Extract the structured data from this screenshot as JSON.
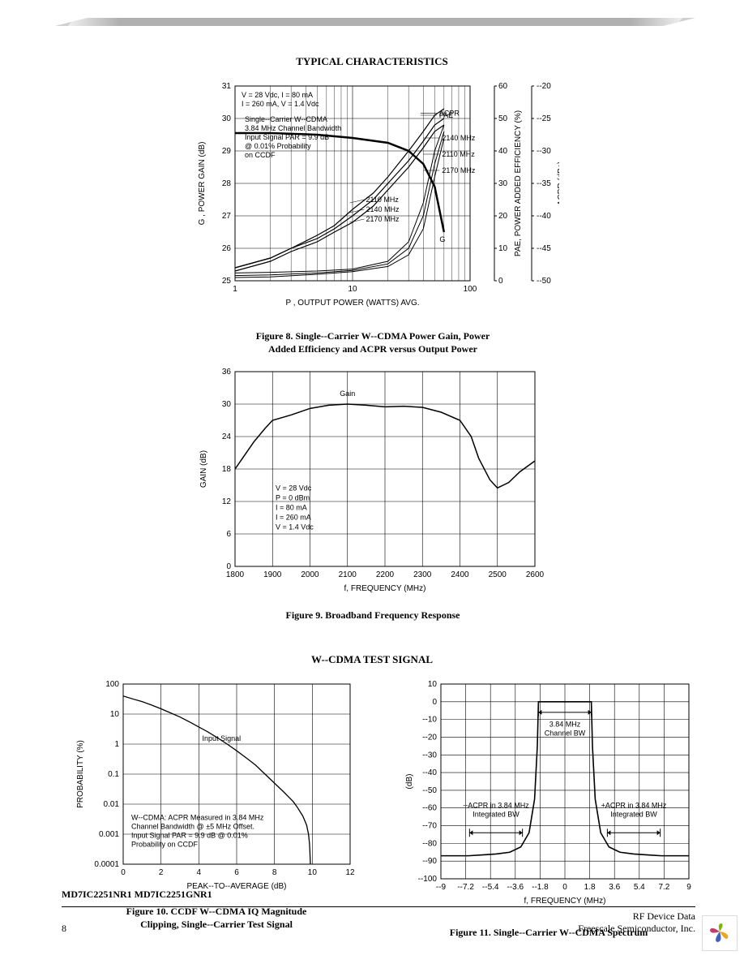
{
  "section_titles": {
    "typical": "TYPICAL CHARACTERISTICS",
    "wcdma": "W--CDMA TEST SIGNAL"
  },
  "fig8": {
    "caption1": "Figure 8. Single--Carrier W--CDMA Power Gain, Power",
    "caption2": "Added Efficiency and ACPR versus Output Power",
    "xlabel": "P    , OUTPUT POWER (WATTS) AVG.",
    "ylabel_left": "G   , POWER GAIN (dB)",
    "ylabel_mid": "PAE, POWER ADDED EFFICIENCY (%)",
    "ylabel_right": "ACPR   (dBc)",
    "xlim": [
      1,
      100
    ],
    "ylim_left": [
      25,
      31
    ],
    "ytick_left": [
      25,
      26,
      27,
      28,
      29,
      30,
      31
    ],
    "ylim_mid": [
      0,
      60
    ],
    "ytick_mid": [
      0,
      10,
      20,
      30,
      40,
      50,
      60
    ],
    "ylim_right": [
      -50,
      -20
    ],
    "ytick_right": [
      -50,
      -45,
      -40,
      -35,
      -30,
      -25,
      -20
    ],
    "xtick": [
      1,
      10,
      100
    ],
    "conditions": [
      "V_DD = 28 Vdc, I_DQ(A-B) = 80 mA",
      "I_DQ(A) = 260 mA, V_GS(B) = 1.4 Vdc"
    ],
    "note": [
      "Single--Carrier W--CDMA",
      "3.84 MHz Channel Bandwidth",
      "Input Signal PAR = 9.9 dB",
      "@ 0.01% Probability",
      "on CCDF"
    ],
    "curve_labels": [
      "ACPR",
      "PAE",
      "2140 MHz",
      "2110 MHz",
      "2170 MHz",
      "2110 MHz",
      "2140 MHz",
      "2170 MHz",
      "G"
    ],
    "line_color": "#000000",
    "pae_curves": {
      "f": [
        2110,
        2140,
        2170
      ],
      "points": {
        "x": [
          1,
          2,
          3,
          5,
          7,
          10,
          15,
          20,
          30,
          40,
          50,
          60
        ],
        "2110": [
          4,
          7,
          10,
          14,
          17,
          22,
          27,
          32,
          40,
          46,
          51,
          53
        ],
        "2140": [
          4,
          7,
          10,
          13,
          16,
          20,
          25,
          30,
          37,
          43,
          48,
          50
        ],
        "2170": [
          3,
          6,
          9,
          12,
          15,
          18,
          23,
          28,
          35,
          41,
          46,
          48
        ]
      }
    },
    "gain_curves": {
      "x": [
        1,
        2,
        5,
        10,
        20,
        30,
        40,
        50,
        60
      ],
      "y": [
        29.55,
        29.55,
        29.5,
        29.4,
        29.25,
        29.0,
        28.6,
        27.9,
        26.5
      ]
    },
    "acpr_curves": {
      "x": [
        1,
        2,
        5,
        10,
        20,
        30,
        40,
        50,
        60
      ],
      "2110": [
        -48.8,
        -48.7,
        -48.5,
        -48.2,
        -47.0,
        -44.0,
        -38.0,
        -30.0,
        -26.0
      ],
      "2140": [
        -49.2,
        -49.1,
        -48.8,
        -48.4,
        -47.4,
        -45.0,
        -40.0,
        -32.0,
        -27.0
      ],
      "2170": [
        -49.5,
        -49.4,
        -49.0,
        -48.6,
        -47.8,
        -46.0,
        -42.0,
        -34.0,
        -28.0
      ]
    }
  },
  "fig9": {
    "caption": "Figure 9. Broadband Frequency Response",
    "xlabel": "f, FREQUENCY (MHz)",
    "ylabel": "GAIN (dB)",
    "xlim": [
      1800,
      2600
    ],
    "xtick": [
      1800,
      1900,
      2000,
      2100,
      2200,
      2300,
      2400,
      2500,
      2600
    ],
    "ylim": [
      0,
      36
    ],
    "ytick": [
      0,
      6,
      12,
      18,
      24,
      30,
      36
    ],
    "curve_label": "Gain",
    "conditions": [
      "V_DD = 28 Vdc",
      "P_in = 0 dBm",
      "I_DQ(A-B) = 80 mA",
      "I_DQ(A) = 260 mA",
      "V_GS(B) = 1.4 Vdc"
    ],
    "points": {
      "x": [
        1800,
        1820,
        1850,
        1880,
        1900,
        1950,
        2000,
        2050,
        2100,
        2150,
        2200,
        2250,
        2300,
        2350,
        2400,
        2430,
        2450,
        2480,
        2500,
        2530,
        2560,
        2600
      ],
      "y": [
        18,
        20,
        23,
        25.5,
        27,
        28,
        29.2,
        29.8,
        30,
        29.8,
        29.5,
        29.6,
        29.4,
        28.5,
        27,
        24,
        20,
        16,
        14.5,
        15.5,
        17.5,
        19.5
      ]
    },
    "line_color": "#000000"
  },
  "fig10": {
    "caption1": "Figure 10. CCDF W--CDMA IQ Magnitude",
    "caption2": "Clipping, Single--Carrier Test Signal",
    "xlabel": "PEAK--TO--AVERAGE (dB)",
    "ylabel": "PROBABILITY (%)",
    "xlim": [
      0,
      12
    ],
    "xtick": [
      0,
      2,
      4,
      6,
      8,
      10,
      12
    ],
    "ylim": [
      0.0001,
      100
    ],
    "ytick": [
      0.0001,
      0.001,
      0.01,
      0.1,
      1,
      10,
      100
    ],
    "curve_label": "Input Signal",
    "note": [
      "W--CDMA: ACPR Measured in 3.84 MHz",
      "Channel Bandwidth @ ±5 MHz Offset.",
      "Input Signal PAR = 9.9 dB @ 0.01%",
      "Probability on CCDF"
    ],
    "points": {
      "x": [
        0,
        0.5,
        1,
        1.5,
        2,
        2.5,
        3,
        3.5,
        4,
        4.5,
        5,
        5.5,
        6,
        6.5,
        7,
        7.5,
        8,
        8.5,
        9,
        9.2,
        9.5,
        9.7,
        9.8,
        9.85,
        9.87,
        9.88,
        9.9
      ],
      "y": [
        40,
        32,
        26,
        20,
        15,
        11,
        8,
        5.5,
        3.7,
        2.5,
        1.6,
        1,
        0.6,
        0.35,
        0.2,
        0.1,
        0.05,
        0.025,
        0.012,
        0.008,
        0.004,
        0.002,
        0.001,
        0.0005,
        0.0003,
        0.0002,
        0.0001
      ]
    },
    "line_color": "#000000"
  },
  "fig11": {
    "caption": "Figure 11. Single--Carrier W--CDMA Spectrum",
    "xlabel": "f, FREQUENCY (MHz)",
    "ylabel": "(dB)",
    "xlim": [
      -9,
      9
    ],
    "xtick": [
      -9,
      -7.2,
      -5.4,
      -3.6,
      -1.8,
      0,
      1.8,
      3.6,
      5.4,
      7.2,
      9
    ],
    "ylim": [
      -100,
      10
    ],
    "ytick": [
      -100,
      -90,
      -80,
      -70,
      -60,
      -50,
      -40,
      -30,
      -20,
      -10,
      0,
      10
    ],
    "labels": {
      "center": "3.84 MHz\nChannel BW",
      "left": "--ACPR in 3.84 MHz\nIntegrated BW",
      "right": "+ACPR in 3.84 MHz\nIntegrated BW"
    },
    "points": {
      "x": [
        -9,
        -8,
        -7,
        -6,
        -5,
        -4,
        -3.2,
        -2.6,
        -2.2,
        -2.0,
        -1.92,
        -1.8,
        -1.5,
        -1,
        0,
        1,
        1.5,
        1.8,
        1.92,
        2.0,
        2.2,
        2.6,
        3.2,
        4,
        5,
        6,
        7,
        8,
        9
      ],
      "y": [
        -87,
        -87,
        -87,
        -86.5,
        -86,
        -85,
        -82,
        -74,
        -55,
        -25,
        0,
        0,
        0,
        0,
        0,
        0,
        0,
        0,
        0,
        -25,
        -55,
        -74,
        -82,
        -85,
        -86,
        -86.5,
        -87,
        -87,
        -87
      ]
    },
    "line_color": "#000000"
  },
  "footer": {
    "part_numbers": "MD7IC2251NR1 MD7IC2251GNR1",
    "right1": "RF Device Data",
    "right2": "Freescale Semiconductor, Inc.",
    "page": "8"
  }
}
